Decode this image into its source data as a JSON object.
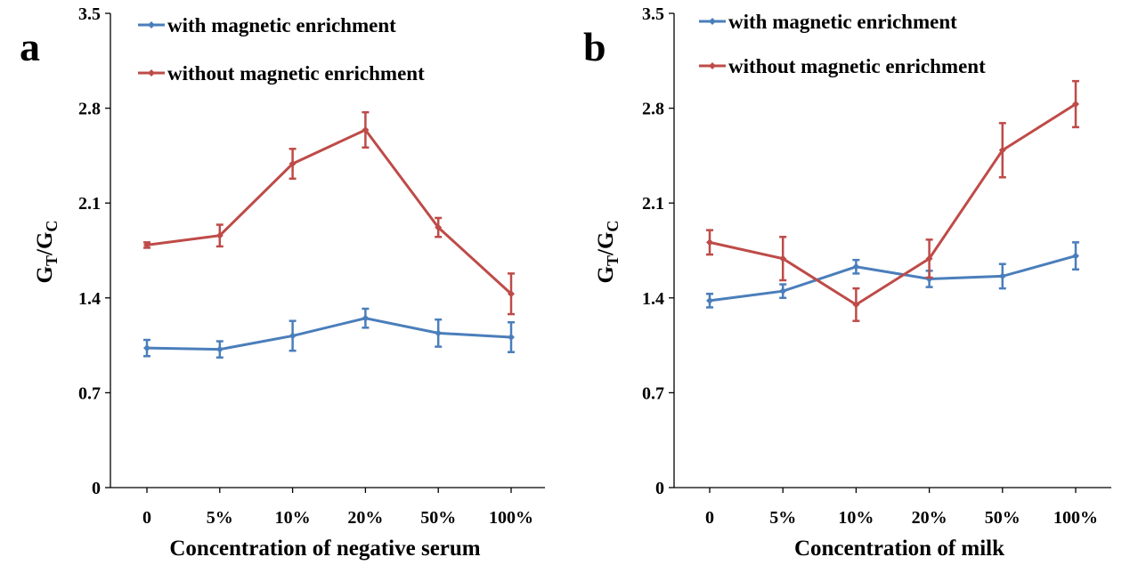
{
  "chart_data": [
    {
      "type": "line",
      "panel_label": "a",
      "categories": [
        "0",
        "5%",
        "10%",
        "20%",
        "50%",
        "100%"
      ],
      "xlabel": "Concentration of negative serum",
      "ylabel": "GT/GC",
      "ylabel_main": "G",
      "ylabel_sub1": "T",
      "ylabel_slash": "/G",
      "ylabel_sub2": "C",
      "ylim": [
        0,
        3.5
      ],
      "yticks": [
        "0",
        "0.7",
        "1.4",
        "2.1",
        "2.8",
        "3.5"
      ],
      "series": [
        {
          "name": "with magnetic enrichment",
          "color": "#4a7ebb",
          "values": [
            1.03,
            1.02,
            1.12,
            1.25,
            1.14,
            1.11
          ],
          "errors": [
            0.06,
            0.06,
            0.11,
            0.07,
            0.1,
            0.11
          ]
        },
        {
          "name": "without magnetic enrichment",
          "color": "#be4b48",
          "values": [
            1.79,
            1.86,
            2.39,
            2.64,
            1.92,
            1.43
          ],
          "errors": [
            0.02,
            0.08,
            0.11,
            0.13,
            0.07,
            0.15
          ]
        }
      ]
    },
    {
      "type": "line",
      "panel_label": "b",
      "categories": [
        "0",
        "5%",
        "10%",
        "20%",
        "50%",
        "100%"
      ],
      "xlabel": "Concentration of milk",
      "ylabel": "GT/GC",
      "ylabel_main": "G",
      "ylabel_sub1": "T",
      "ylabel_slash": "/G",
      "ylabel_sub2": "C",
      "ylim": [
        0,
        3.5
      ],
      "yticks": [
        "0",
        "0.7",
        "1.4",
        "2.1",
        "2.8",
        "3.5"
      ],
      "series": [
        {
          "name": "with magnetic enrichment",
          "color": "#4a7ebb",
          "values": [
            1.38,
            1.45,
            1.63,
            1.54,
            1.56,
            1.71
          ],
          "errors": [
            0.05,
            0.05,
            0.05,
            0.06,
            0.09,
            0.1
          ]
        },
        {
          "name": "without magnetic enrichment",
          "color": "#be4b48",
          "values": [
            1.81,
            1.69,
            1.35,
            1.69,
            2.49,
            2.83
          ],
          "errors": [
            0.09,
            0.16,
            0.12,
            0.14,
            0.2,
            0.17
          ]
        }
      ]
    }
  ]
}
